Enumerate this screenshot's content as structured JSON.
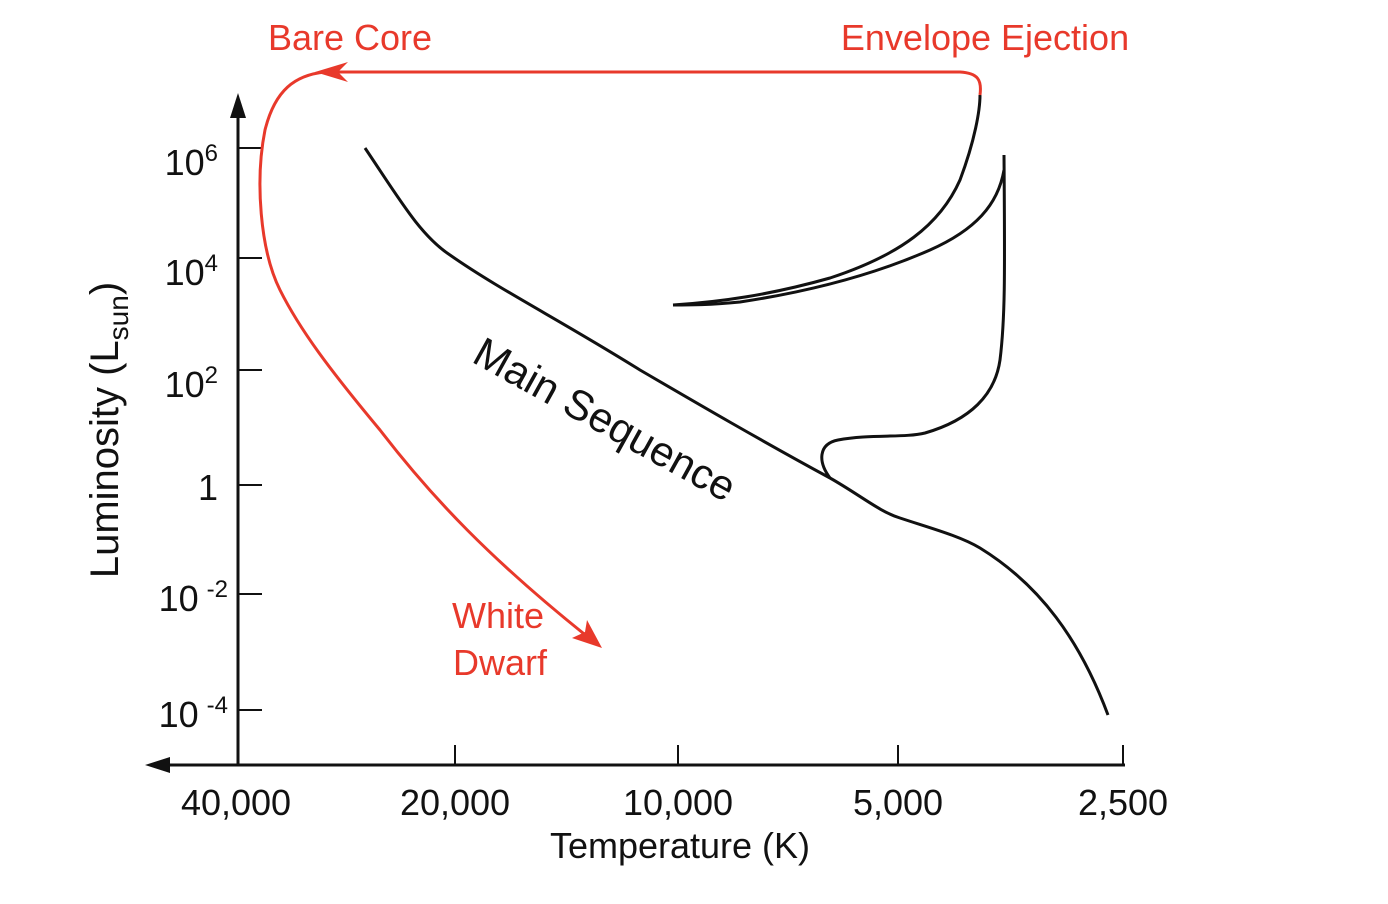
{
  "annotations": {
    "bare_core": "Bare Core",
    "envelope_ejection": "Envelope Ejection",
    "white_dwarf": [
      "White",
      "Dwarf"
    ],
    "main_sequence": "Main Sequence"
  },
  "axes": {
    "x_label": "Temperature (K)",
    "y_label": {
      "text": "Luminosity (L",
      "sub": "sun",
      "close": ")"
    },
    "y_ticks": [
      {
        "base": "10",
        "exp": "6"
      },
      {
        "base": "10",
        "exp": "4"
      },
      {
        "base": "10",
        "exp": "2"
      },
      {
        "base": "1"
      },
      {
        "base": "10",
        "exp": "-2"
      },
      {
        "base": "10",
        "exp": "-4"
      }
    ],
    "x_ticks": [
      "40,000",
      "20,000",
      "10,000",
      "5,000",
      "2,500"
    ]
  }
}
